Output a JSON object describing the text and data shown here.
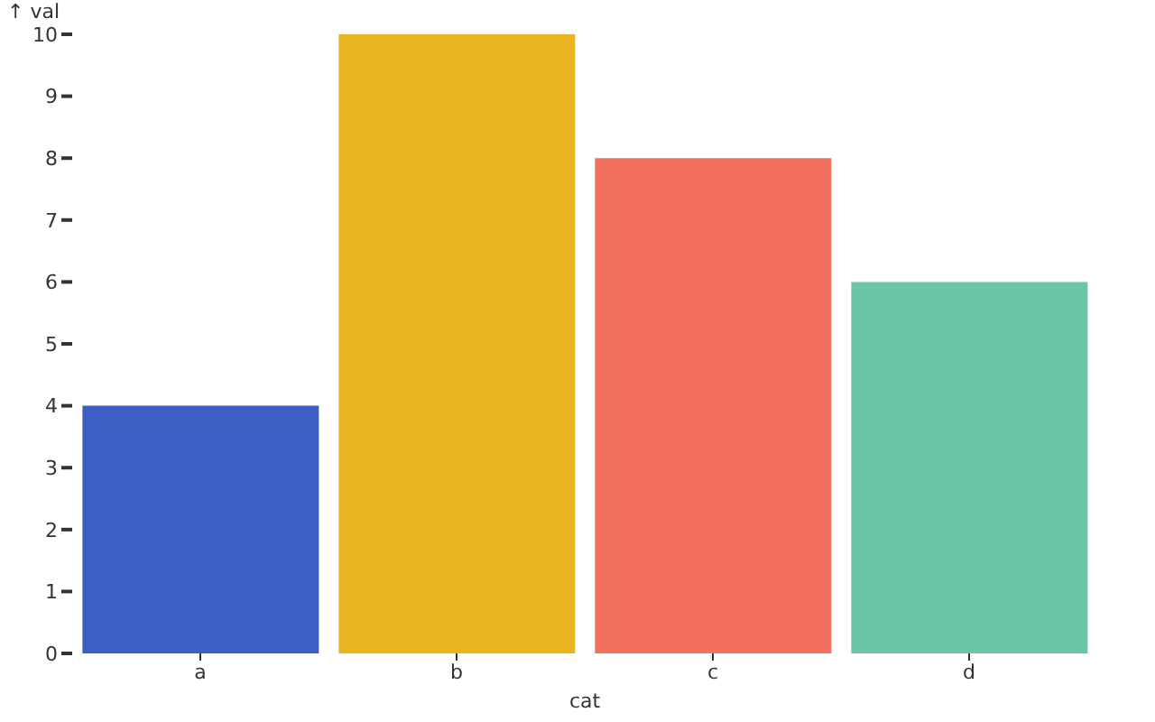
{
  "chart_data": {
    "type": "bar",
    "xlabel": "cat",
    "ylabel": "↑ val",
    "categories": [
      "a",
      "b",
      "c",
      "d"
    ],
    "values": [
      4,
      10,
      8,
      6
    ],
    "colors": [
      "#3d5fc4",
      "#e8b422",
      "#f2705e",
      "#6cc5a9"
    ],
    "ylim": [
      0,
      10
    ],
    "yticks": [
      0,
      1,
      2,
      3,
      4,
      5,
      6,
      7,
      8,
      9,
      10
    ],
    "grid": false,
    "legend": false
  }
}
